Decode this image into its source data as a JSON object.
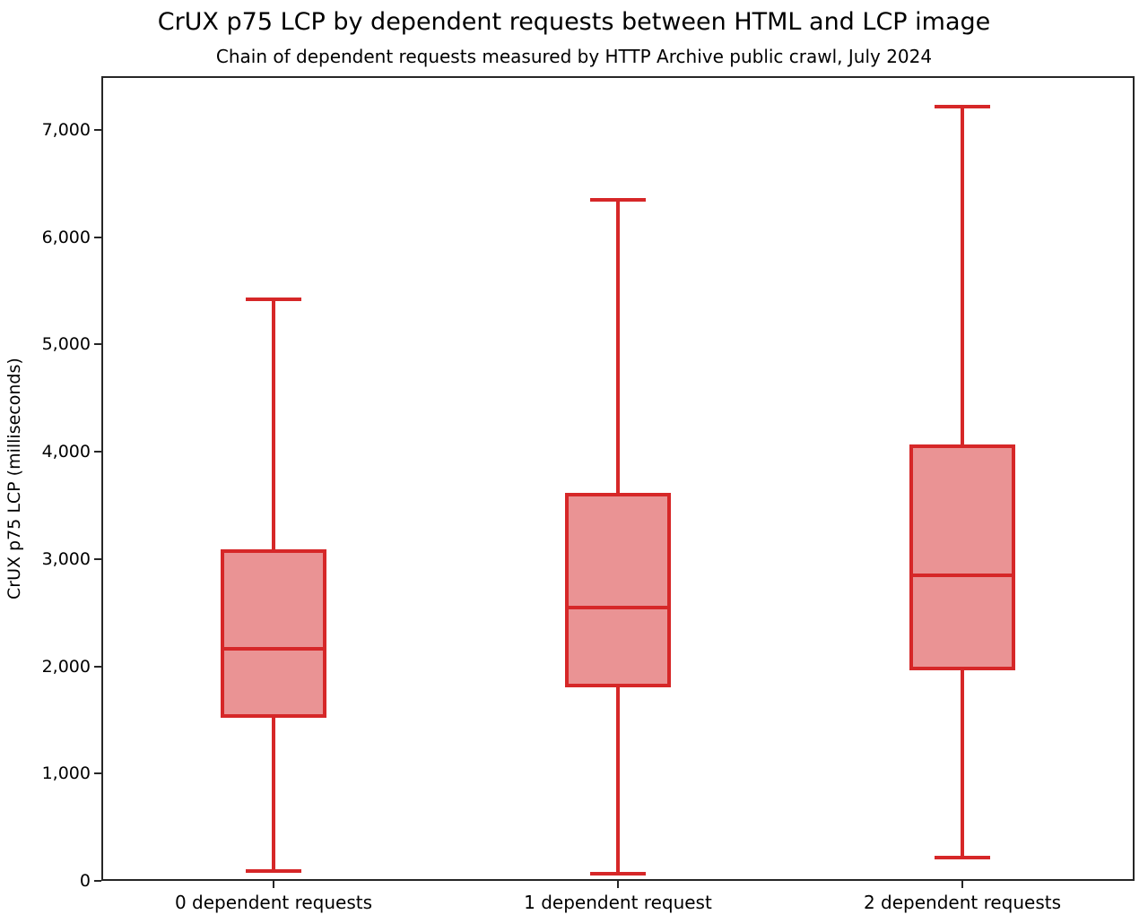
{
  "chart_data": {
    "type": "boxplot",
    "title": "CrUX p75 LCP by dependent requests between HTML and LCP image",
    "subtitle": "Chain of dependent requests measured by HTTP Archive public crawl, July 2024",
    "ylabel": "CrUX p75 LCP (milliseconds)",
    "xlabel": "",
    "ylim": [
      0,
      7500
    ],
    "yticks": [
      0,
      1000,
      2000,
      3000,
      4000,
      5000,
      6000,
      7000
    ],
    "ytick_labels": [
      "0",
      "1,000",
      "2,000",
      "3,000",
      "4,000",
      "5,000",
      "6,000",
      "7,000"
    ],
    "grid": false,
    "legend": "none",
    "categories": [
      "0 dependent requests",
      "1 dependent request",
      "2 dependent requests"
    ],
    "series": [
      {
        "name": "0 dependent requests",
        "whisker_low": 90,
        "q1": 1520,
        "median": 2160,
        "q3": 3090,
        "whisker_high": 5420
      },
      {
        "name": "1 dependent request",
        "whisker_low": 70,
        "q1": 1800,
        "median": 2550,
        "q3": 3620,
        "whisker_high": 6350
      },
      {
        "name": "2 dependent requests",
        "whisker_low": 220,
        "q1": 1960,
        "median": 2850,
        "q3": 4070,
        "whisker_high": 7220
      }
    ],
    "colors": {
      "box_fill": "#ea9394",
      "box_stroke": "#d62728",
      "axis": "#262626",
      "text": "#000000",
      "background": "#ffffff"
    }
  }
}
